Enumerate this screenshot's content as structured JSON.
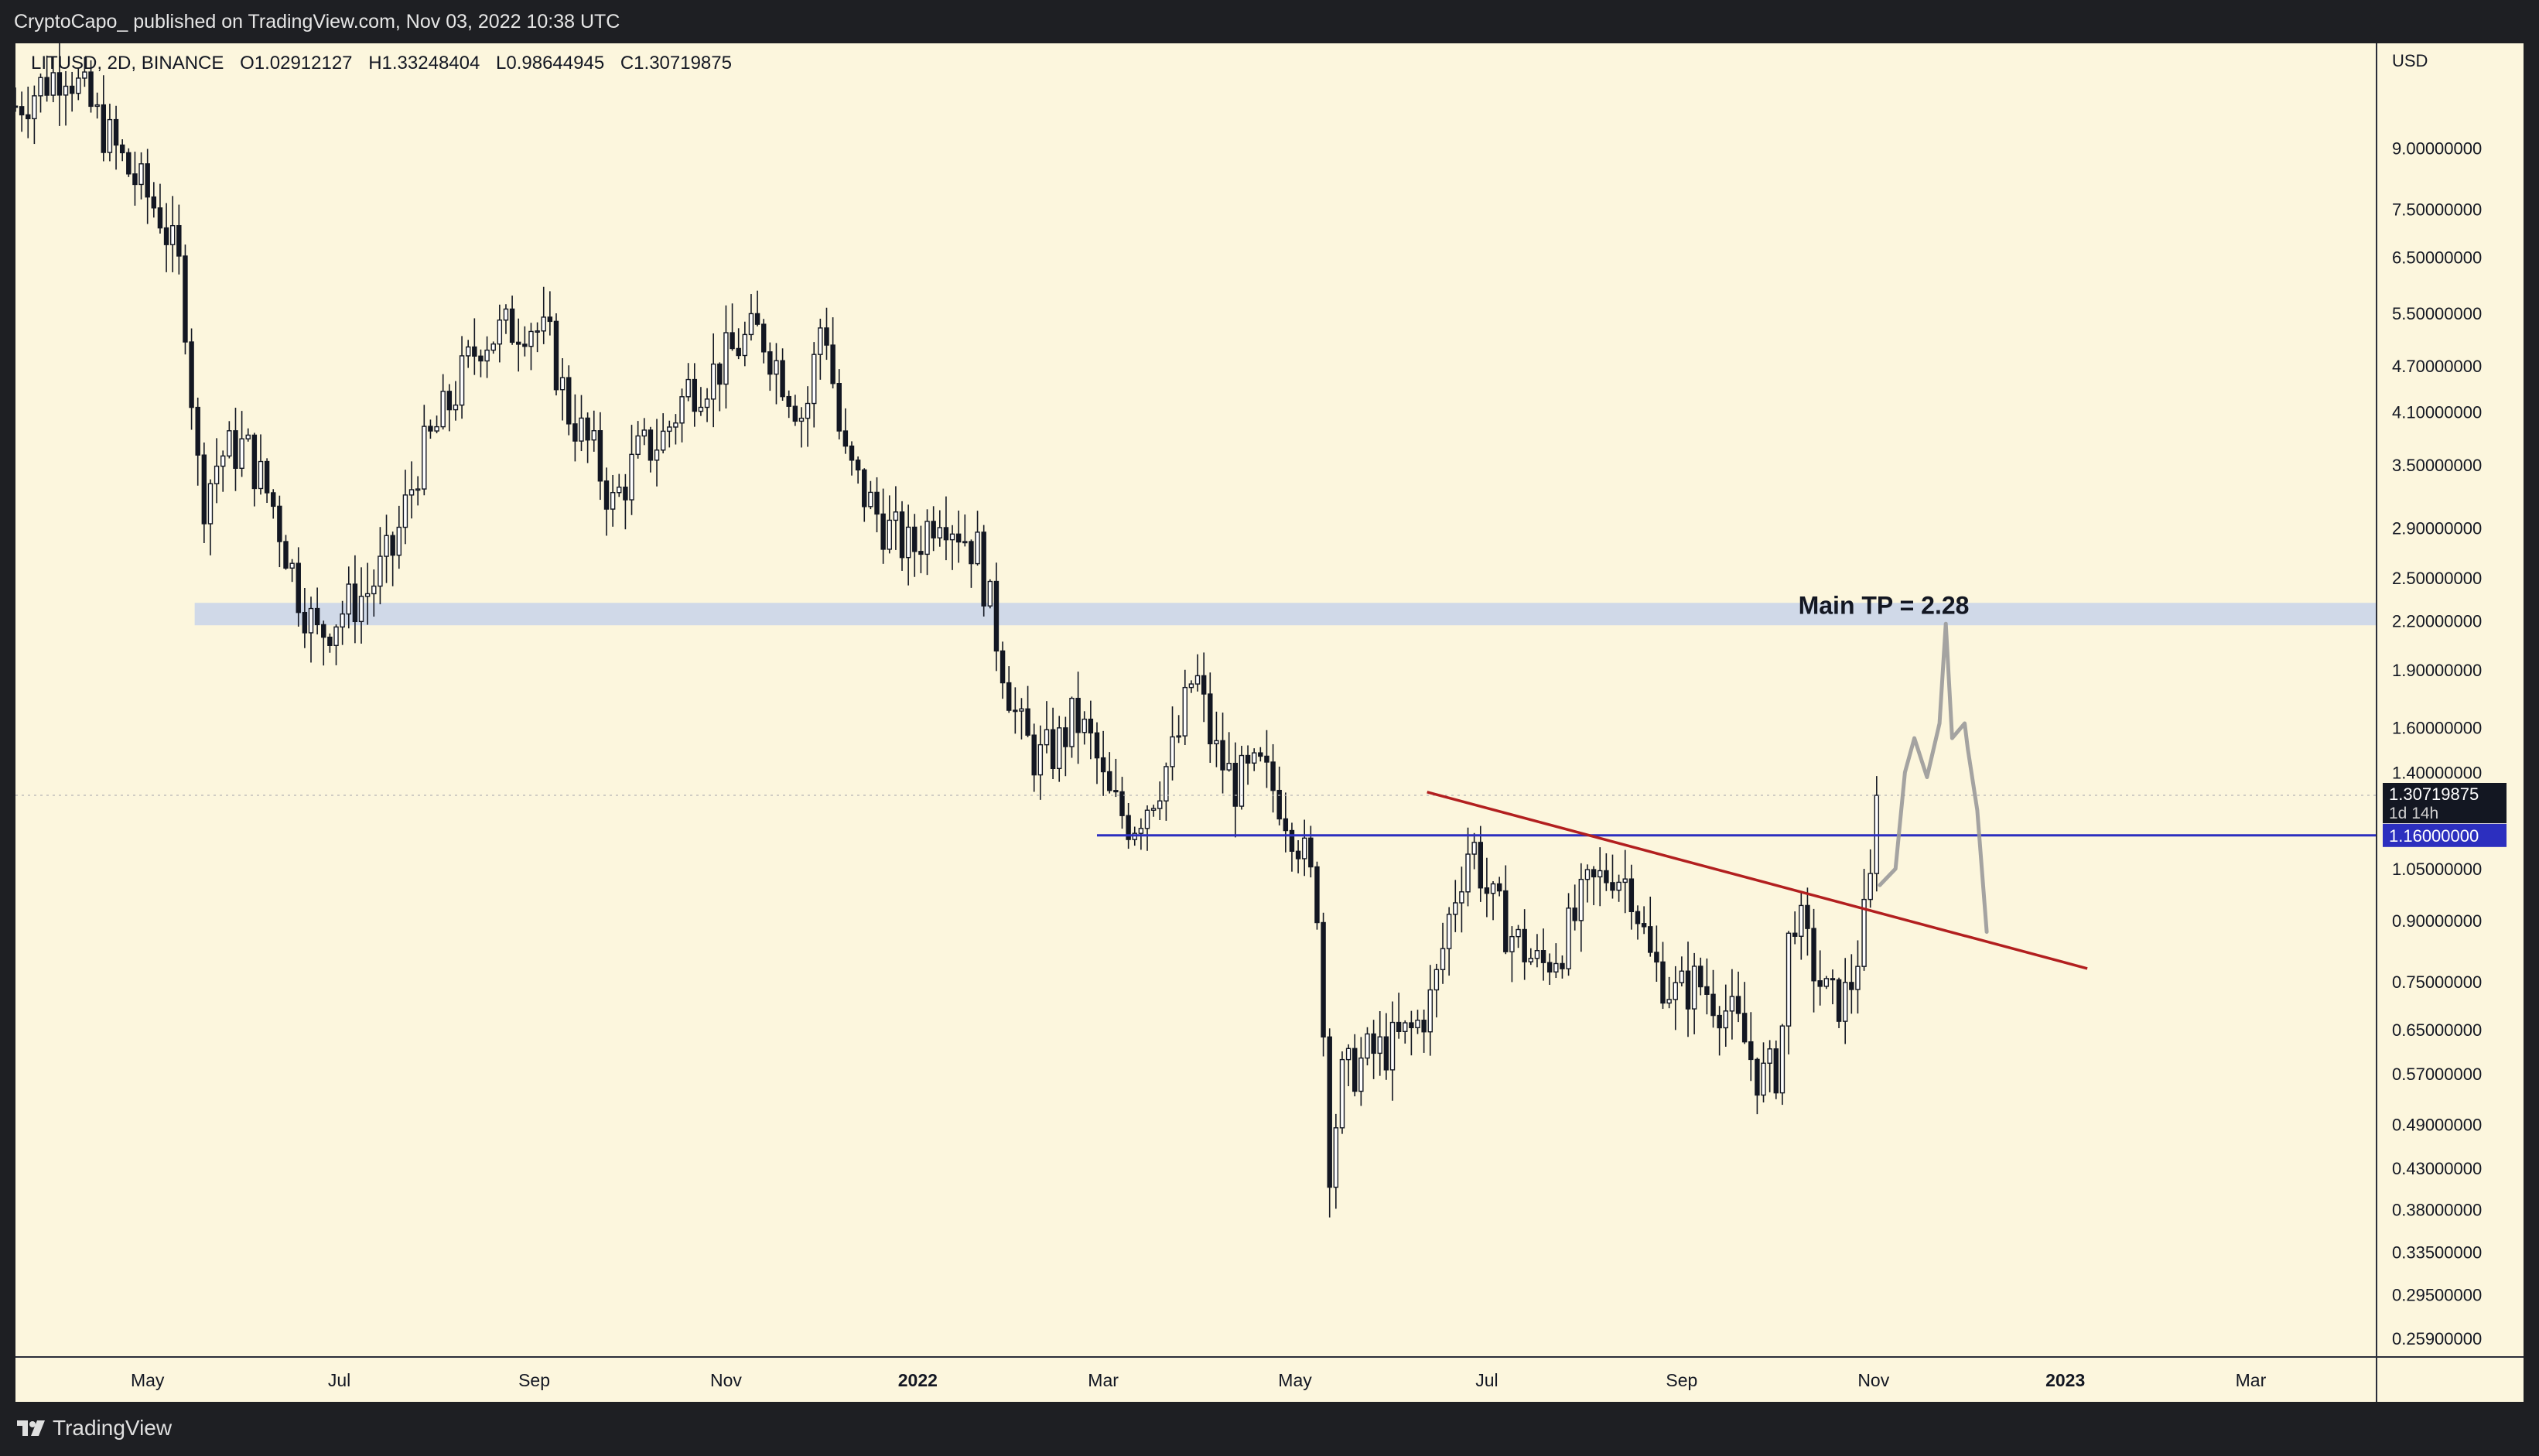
{
  "header": {
    "publisher": "CryptoCapo_ published on TradingView.com, Nov 03, 2022 10:38 UTC"
  },
  "legend": {
    "symbol": "LITUSD, 2D, BINANCE",
    "open": "O1.02912127",
    "high": "H1.33248404",
    "low": "L0.98644945",
    "close": "C1.30719875"
  },
  "footer": {
    "brand": "TradingView"
  },
  "colors": {
    "background": "#fcf6dd",
    "candle": "#131722",
    "zone": "#c8d3ea",
    "support_line": "#2c2fbf",
    "trendline": "#b21f1f",
    "projection": "#9a9a9a"
  },
  "chart_data": {
    "type": "candlestick",
    "title": "",
    "y_scale": "log",
    "currency_label": "USD",
    "ylim": [
      0.245,
      12.3
    ],
    "xlim": [
      "2021-03-20",
      "2023-04-10"
    ],
    "y_ticks": [
      "9.00000000",
      "7.50000000",
      "6.50000000",
      "5.50000000",
      "4.70000000",
      "4.10000000",
      "3.50000000",
      "2.90000000",
      "2.50000000",
      "2.20000000",
      "1.90000000",
      "1.60000000",
      "1.40000000",
      "1.05000000",
      "0.90000000",
      "0.75000000",
      "0.65000000",
      "0.57000000",
      "0.49000000",
      "0.43000000",
      "0.38000000",
      "0.33500000",
      "0.29500000",
      "0.25900000"
    ],
    "x_ticks": [
      {
        "label": "May",
        "date": "2021-05-01"
      },
      {
        "label": "Jul",
        "date": "2021-07-01"
      },
      {
        "label": "Sep",
        "date": "2021-09-01"
      },
      {
        "label": "Nov",
        "date": "2021-11-01"
      },
      {
        "label": "2022",
        "date": "2022-01-01",
        "bold": true
      },
      {
        "label": "Mar",
        "date": "2022-03-01"
      },
      {
        "label": "May",
        "date": "2022-05-01"
      },
      {
        "label": "Jul",
        "date": "2022-07-01"
      },
      {
        "label": "Sep",
        "date": "2022-09-01"
      },
      {
        "label": "Nov",
        "date": "2022-11-01"
      },
      {
        "label": "2023",
        "date": "2023-01-01",
        "bold": true
      },
      {
        "label": "Mar",
        "date": "2023-03-01"
      }
    ],
    "price_path": [
      [
        "2021-03-20",
        10.2
      ],
      [
        "2021-04-05",
        11.5
      ],
      [
        "2021-04-15",
        9.8
      ],
      [
        "2021-04-25",
        8.4
      ],
      [
        "2021-05-05",
        7.4
      ],
      [
        "2021-05-12",
        6.1
      ],
      [
        "2021-05-18",
        3.1
      ],
      [
        "2021-05-24",
        3.6
      ],
      [
        "2021-06-01",
        3.7
      ],
      [
        "2021-06-10",
        3.1
      ],
      [
        "2021-06-18",
        2.4
      ],
      [
        "2021-06-24",
        2.1
      ],
      [
        "2021-07-01",
        2.25
      ],
      [
        "2021-07-10",
        2.4
      ],
      [
        "2021-07-18",
        2.7
      ],
      [
        "2021-07-26",
        3.5
      ],
      [
        "2021-08-05",
        4.2
      ],
      [
        "2021-08-15",
        5.1
      ],
      [
        "2021-08-22",
        5.2
      ],
      [
        "2021-08-30",
        5.4
      ],
      [
        "2021-09-06",
        5.0
      ],
      [
        "2021-09-12",
        4.1
      ],
      [
        "2021-09-20",
        3.6
      ],
      [
        "2021-09-26",
        3.1
      ],
      [
        "2021-10-04",
        3.6
      ],
      [
        "2021-10-12",
        3.8
      ],
      [
        "2021-10-20",
        4.4
      ],
      [
        "2021-10-28",
        4.6
      ],
      [
        "2021-11-05",
        5.0
      ],
      [
        "2021-11-12",
        5.2
      ],
      [
        "2021-11-20",
        4.5
      ],
      [
        "2021-11-26",
        4.0
      ],
      [
        "2021-12-02",
        5.6
      ],
      [
        "2021-12-08",
        3.6
      ],
      [
        "2021-12-15",
        3.2
      ],
      [
        "2021-12-22",
        2.9
      ],
      [
        "2021-12-30",
        2.7
      ],
      [
        "2022-01-08",
        3.1
      ],
      [
        "2022-01-14",
        2.9
      ],
      [
        "2022-01-20",
        2.7
      ],
      [
        "2022-01-26",
        2.1
      ],
      [
        "2022-02-02",
        1.6
      ],
      [
        "2022-02-08",
        1.45
      ],
      [
        "2022-02-14",
        1.5
      ],
      [
        "2022-02-20",
        1.65
      ],
      [
        "2022-02-26",
        1.5
      ],
      [
        "2022-03-02",
        1.3
      ],
      [
        "2022-03-10",
        1.2
      ],
      [
        "2022-03-16",
        1.3
      ],
      [
        "2022-03-24",
        1.5
      ],
      [
        "2022-03-30",
        1.9
      ],
      [
        "2022-04-05",
        1.5
      ],
      [
        "2022-04-12",
        1.35
      ],
      [
        "2022-04-20",
        1.4
      ],
      [
        "2022-04-26",
        1.3
      ],
      [
        "2022-05-02",
        1.15
      ],
      [
        "2022-05-08",
        0.95
      ],
      [
        "2022-05-12",
        0.44
      ],
      [
        "2022-05-16",
        0.56
      ],
      [
        "2022-05-24",
        0.6
      ],
      [
        "2022-06-01",
        0.62
      ],
      [
        "2022-06-08",
        0.65
      ],
      [
        "2022-06-14",
        0.72
      ],
      [
        "2022-06-20",
        0.95
      ],
      [
        "2022-06-26",
        1.15
      ],
      [
        "2022-07-02",
        0.95
      ],
      [
        "2022-07-10",
        0.85
      ],
      [
        "2022-07-18",
        0.78
      ],
      [
        "2022-07-26",
        0.85
      ],
      [
        "2022-08-02",
        0.98
      ],
      [
        "2022-08-10",
        1.05
      ],
      [
        "2022-08-16",
        1.0
      ],
      [
        "2022-08-22",
        0.8
      ],
      [
        "2022-08-30",
        0.72
      ],
      [
        "2022-09-06",
        0.75
      ],
      [
        "2022-09-14",
        0.7
      ],
      [
        "2022-09-20",
        0.64
      ],
      [
        "2022-09-26",
        0.56
      ],
      [
        "2022-10-02",
        0.58
      ],
      [
        "2022-10-06",
        0.95
      ],
      [
        "2022-10-12",
        0.8
      ],
      [
        "2022-10-18",
        0.7
      ],
      [
        "2022-10-24",
        0.72
      ],
      [
        "2022-10-28",
        0.85
      ],
      [
        "2022-11-01",
        1.05
      ],
      [
        "2022-11-03",
        1.307
      ]
    ],
    "annotations": {
      "tp_zone": {
        "low": 2.17,
        "high": 2.32,
        "from": "2021-05-16"
      },
      "tp_label": "Main TP = 2.28",
      "support_line": {
        "price": 1.16,
        "from": "2022-02-27",
        "label": "1.16000000"
      },
      "last_price": {
        "price": 1.30719875,
        "label": "1.30719875",
        "countdown": "1d 14h"
      },
      "trendline": {
        "from": [
          "2022-06-12",
          1.32
        ],
        "to": [
          "2023-01-08",
          0.78
        ]
      },
      "projection": [
        [
          "2022-11-03",
          1.0
        ],
        [
          "2022-11-08",
          1.05
        ],
        [
          "2022-11-11",
          1.4
        ],
        [
          "2022-11-14",
          1.55
        ],
        [
          "2022-11-18",
          1.38
        ],
        [
          "2022-11-22",
          1.62
        ],
        [
          "2022-11-24",
          2.18
        ],
        [
          "2022-11-26",
          1.55
        ],
        [
          "2022-11-30",
          1.62
        ],
        [
          "2022-12-01",
          1.5
        ],
        [
          "2022-12-04",
          1.25
        ],
        [
          "2022-12-07",
          0.87
        ]
      ]
    }
  }
}
